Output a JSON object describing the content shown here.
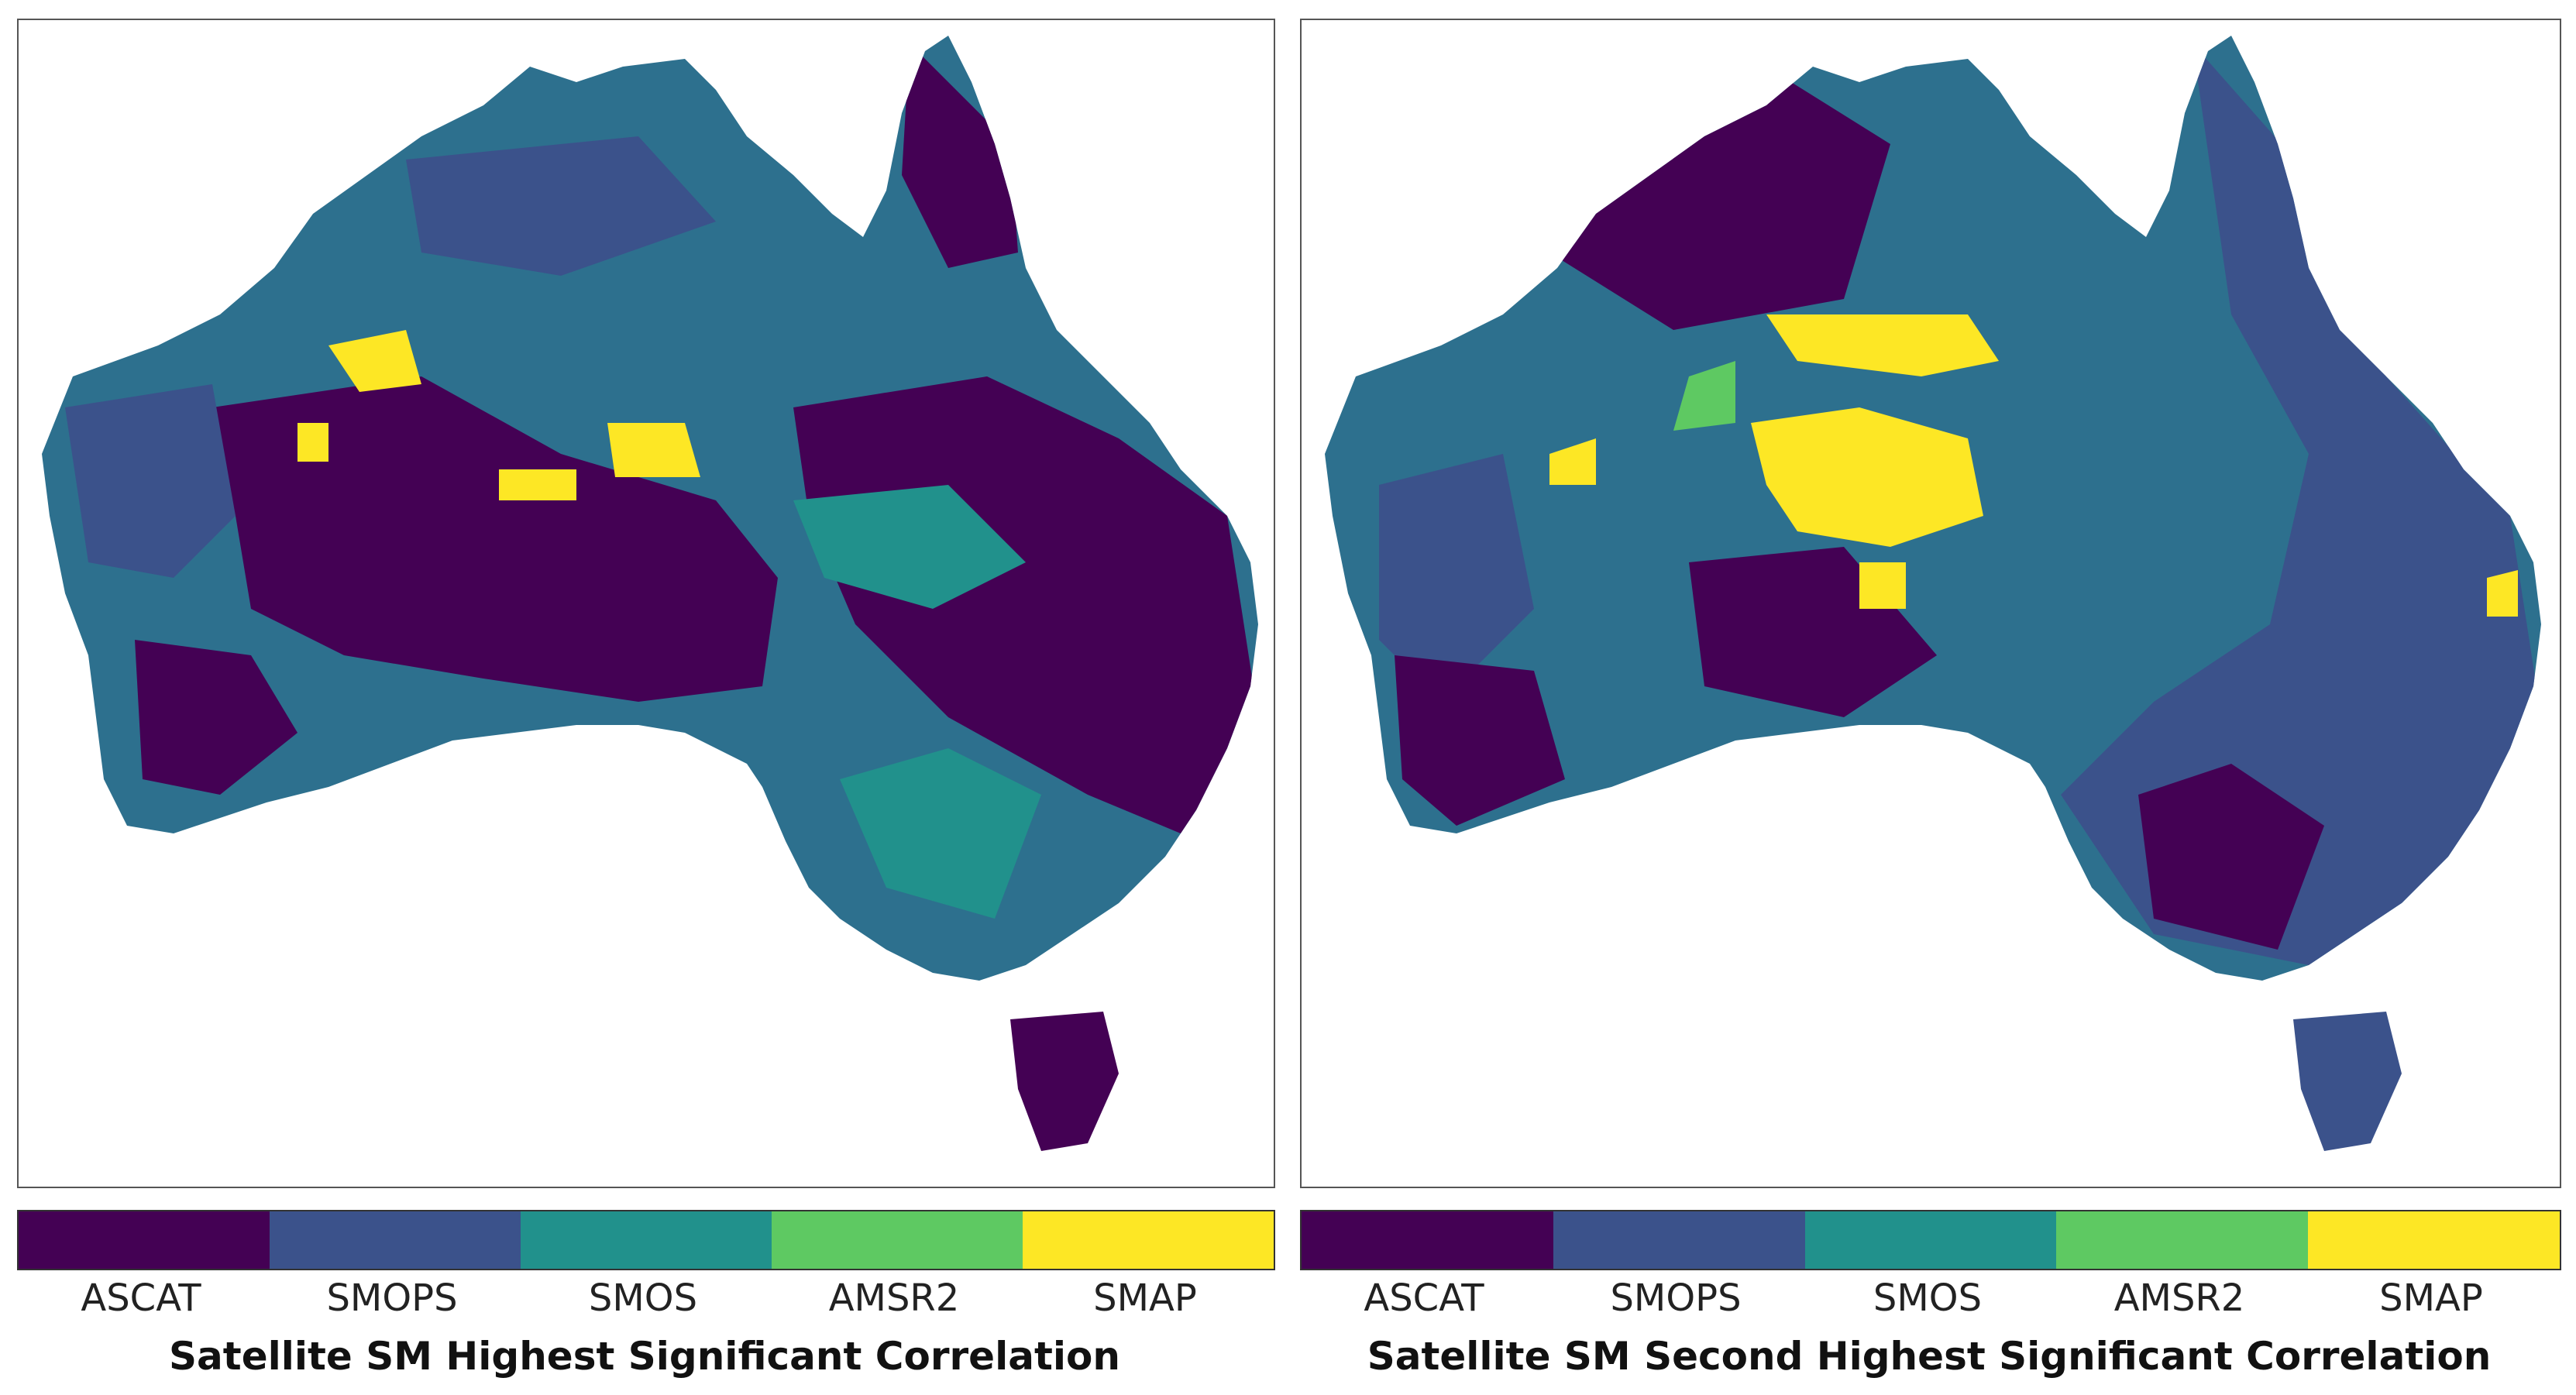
{
  "categories": [
    {
      "label": "ASCAT",
      "color": "#440154"
    },
    {
      "label": "SMOPS",
      "color": "#3b528b"
    },
    {
      "label": "SMOS",
      "color": "#21918c"
    },
    {
      "label": "AMSR2",
      "color": "#5ec962"
    },
    {
      "label": "SMAP",
      "color": "#fde725"
    }
  ],
  "panels": [
    {
      "title": "Satellite SM Highest Significant Correlation"
    },
    {
      "title": "Satellite SM Second Highest Significant Correlation"
    }
  ]
}
